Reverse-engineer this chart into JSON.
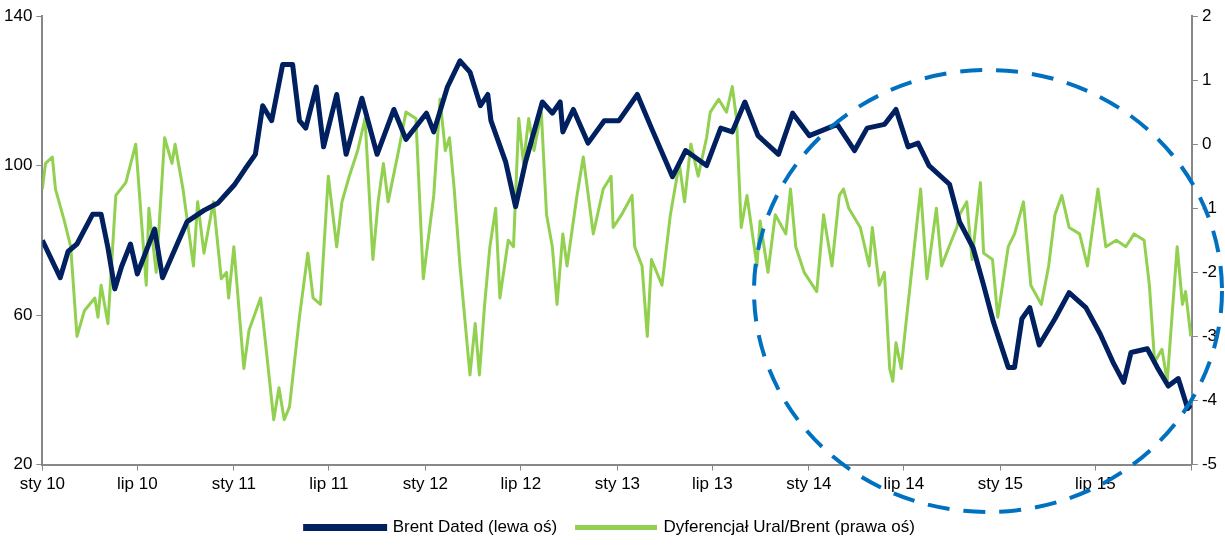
{
  "chart_data": {
    "type": "line",
    "legend": "bottom",
    "xlim": [
      "2010-01-01",
      "2016-01-01"
    ],
    "xticks": [
      {
        "value": "2010-01-01",
        "label": "sty 10"
      },
      {
        "value": "2010-07-01",
        "label": "lip 10"
      },
      {
        "value": "2011-01-01",
        "label": "sty 11"
      },
      {
        "value": "2011-07-01",
        "label": "lip 11"
      },
      {
        "value": "2012-01-01",
        "label": "sty 12"
      },
      {
        "value": "2012-07-01",
        "label": "lip 12"
      },
      {
        "value": "2013-01-01",
        "label": "sty 13"
      },
      {
        "value": "2013-07-01",
        "label": "lip 13"
      },
      {
        "value": "2014-01-01",
        "label": "sty 14"
      },
      {
        "value": "2014-07-01",
        "label": "lip 14"
      },
      {
        "value": "2015-01-01",
        "label": "sty 15"
      },
      {
        "value": "2015-07-01",
        "label": "lip 15"
      },
      {
        "value": "2016-01-01",
        "label": null
      }
    ],
    "ylim": [
      20,
      140
    ],
    "yticks": [
      20,
      60,
      100,
      140
    ],
    "y2lim": [
      -5,
      2
    ],
    "y2ticks": [
      -5,
      -4,
      -3,
      -2,
      -1,
      0,
      1,
      2
    ],
    "series": [
      {
        "name": "Brent Dated (lewa oś)",
        "color": "#002060",
        "x": [
          "2010-01-01",
          "2010-02-04",
          "2010-02-19",
          "2010-03-08",
          "2010-04-07",
          "2010-04-23",
          "2010-05-06",
          "2010-05-19",
          "2010-06-01",
          "2010-06-18",
          "2010-07-01",
          "2010-08-03",
          "2010-08-18",
          "2010-09-15",
          "2010-10-04",
          "2010-11-05",
          "2010-12-02",
          "2011-01-03",
          "2011-01-22",
          "2011-02-11",
          "2011-02-25",
          "2011-03-14",
          "2011-04-04",
          "2011-04-23",
          "2011-05-06",
          "2011-05-18",
          "2011-06-07",
          "2011-06-21",
          "2011-07-16",
          "2011-08-03",
          "2011-09-02",
          "2011-10-01",
          "2011-11-02",
          "2011-11-25",
          "2012-01-03",
          "2012-01-17",
          "2012-02-12",
          "2012-03-07",
          "2012-03-26",
          "2012-04-15",
          "2012-04-29",
          "2012-05-05",
          "2012-06-02",
          "2012-06-21",
          "2012-07-10",
          "2012-08-11",
          "2012-08-30",
          "2012-09-14",
          "2012-09-19",
          "2012-10-09",
          "2012-11-06",
          "2012-12-07",
          "2013-01-04",
          "2013-02-08",
          "2013-03-07",
          "2013-04-16",
          "2013-05-11",
          "2013-06-20",
          "2013-07-17",
          "2013-08-08",
          "2013-09-01",
          "2013-09-26",
          "2013-11-04",
          "2013-12-01",
          "2014-01-02",
          "2014-02-24",
          "2014-03-29",
          "2014-04-22",
          "2014-05-25",
          "2014-06-16",
          "2014-07-09",
          "2014-07-28",
          "2014-08-18",
          "2014-09-26",
          "2014-10-15",
          "2014-11-10",
          "2014-11-30",
          "2014-12-19",
          "2015-01-16",
          "2015-01-28",
          "2015-02-11",
          "2015-02-26",
          "2015-03-16",
          "2015-04-15",
          "2015-05-12",
          "2015-06-13",
          "2015-07-10",
          "2015-08-05",
          "2015-08-24",
          "2015-09-07",
          "2015-10-08",
          "2015-10-27",
          "2015-11-17",
          "2015-12-06",
          "2015-12-24",
          "2015-12-30"
        ],
        "values": [
          80,
          70,
          77,
          79,
          87,
          87,
          78,
          67,
          73,
          79,
          71,
          83,
          70,
          79,
          85,
          88,
          90,
          95,
          99,
          103,
          116,
          112,
          127,
          127,
          112,
          110,
          121,
          105,
          119,
          103,
          118,
          103,
          115,
          107,
          114,
          109,
          121,
          128,
          125,
          116,
          119,
          112,
          101,
          89,
          101,
          117,
          114,
          117,
          109,
          115,
          106,
          112,
          112,
          119,
          110,
          97,
          104,
          100,
          110,
          109,
          117,
          108,
          103,
          114,
          108,
          111,
          104,
          110,
          111,
          115,
          105,
          106,
          100,
          95,
          85,
          78,
          68,
          58,
          46,
          46,
          59,
          62,
          52,
          59,
          66,
          62,
          55,
          47,
          42,
          50,
          51,
          46,
          41,
          43,
          35,
          36
        ]
      },
      {
        "name": "Dyferencjał Ural/Brent (prawa oś)",
        "color": "#92d050",
        "axis": "y2",
        "x": [
          "2010-01-01",
          "2010-01-07",
          "2010-01-20",
          "2010-01-26",
          "2010-02-12",
          "2010-02-24",
          "2010-03-08",
          "2010-03-22",
          "2010-04-11",
          "2010-04-17",
          "2010-04-23",
          "2010-05-06",
          "2010-05-21",
          "2010-06-09",
          "2010-06-28",
          "2010-07-18",
          "2010-07-23",
          "2010-08-06",
          "2010-08-22",
          "2010-09-05",
          "2010-09-11",
          "2010-09-26",
          "2010-10-16",
          "2010-10-24",
          "2010-11-05",
          "2010-11-23",
          "2010-12-08",
          "2010-12-18",
          "2010-12-22",
          "2011-01-01",
          "2011-01-20",
          "2011-01-30",
          "2011-02-21",
          "2011-03-01",
          "2011-03-18",
          "2011-03-28",
          "2011-04-07",
          "2011-04-17",
          "2011-05-06",
          "2011-05-22",
          "2011-06-01",
          "2011-06-15",
          "2011-06-30",
          "2011-07-16",
          "2011-07-26",
          "2011-08-09",
          "2011-08-25",
          "2011-09-08",
          "2011-09-23",
          "2011-10-03",
          "2011-10-13",
          "2011-10-22",
          "2011-11-11",
          "2011-11-25",
          "2011-12-14",
          "2011-12-28",
          "2012-01-17",
          "2012-01-29",
          "2012-02-08",
          "2012-02-16",
          "2012-02-25",
          "2012-03-07",
          "2012-03-26",
          "2012-04-05",
          "2012-04-13",
          "2012-04-23",
          "2012-05-03",
          "2012-05-14",
          "2012-05-22",
          "2012-06-07",
          "2012-06-17",
          "2012-06-27",
          "2012-07-06",
          "2012-07-16",
          "2012-07-26",
          "2012-08-09",
          "2012-08-19",
          "2012-08-30",
          "2012-09-08",
          "2012-09-19",
          "2012-09-27",
          "2012-10-16",
          "2012-10-28",
          "2012-11-16",
          "2012-12-05",
          "2012-12-20",
          "2012-12-24",
          "2013-01-09",
          "2013-01-29",
          "2013-02-03",
          "2013-02-17",
          "2013-02-27",
          "2013-03-07",
          "2013-03-27",
          "2013-04-12",
          "2013-04-29",
          "2013-05-09",
          "2013-05-21",
          "2013-06-04",
          "2013-06-20",
          "2013-06-27",
          "2013-07-13",
          "2013-07-28",
          "2013-08-08",
          "2013-08-16",
          "2013-08-25",
          "2013-09-05",
          "2013-09-24",
          "2013-09-30",
          "2013-10-15",
          "2013-10-29",
          "2013-11-18",
          "2013-11-27",
          "2013-12-07",
          "2013-12-23",
          "2014-01-16",
          "2014-01-29",
          "2014-02-14",
          "2014-02-28",
          "2014-03-08",
          "2014-03-18",
          "2014-04-09",
          "2014-04-26",
          "2014-05-02",
          "2014-05-15",
          "2014-05-25",
          "2014-06-04",
          "2014-06-10",
          "2014-06-16",
          "2014-06-26",
          "2014-07-05",
          "2014-07-25",
          "2014-08-02",
          "2014-08-14",
          "2014-09-01",
          "2014-09-11",
          "2014-09-30",
          "2014-10-10",
          "2014-10-15",
          "2014-10-29",
          "2014-11-08",
          "2014-11-24",
          "2014-11-30",
          "2014-12-17",
          "2014-12-27",
          "2015-01-16",
          "2015-01-28",
          "2015-02-14",
          "2015-02-28",
          "2015-03-20",
          "2015-04-03",
          "2015-04-15",
          "2015-04-28",
          "2015-05-12",
          "2015-06-01",
          "2015-06-16",
          "2015-07-06",
          "2015-07-21",
          "2015-08-10",
          "2015-08-28",
          "2015-09-13",
          "2015-10-02",
          "2015-10-12",
          "2015-10-22",
          "2015-11-05",
          "2015-11-15",
          "2015-11-24",
          "2015-12-04",
          "2015-12-14",
          "2015-12-20",
          "2015-12-30"
        ],
        "values": [
          -0.7,
          -0.3,
          -0.2,
          -0.7,
          -1.2,
          -1.6,
          -3.0,
          -2.6,
          -2.4,
          -2.7,
          -2.2,
          -2.8,
          -0.8,
          -0.6,
          0.0,
          -2.2,
          -1.0,
          -2.0,
          0.1,
          -0.3,
          0.0,
          -0.7,
          -1.9,
          -0.9,
          -1.7,
          -0.9,
          -2.1,
          -2.0,
          -2.4,
          -1.6,
          -3.5,
          -2.9,
          -2.4,
          -3.0,
          -4.3,
          -3.8,
          -4.3,
          -4.1,
          -2.7,
          -1.7,
          -2.4,
          -2.5,
          -0.5,
          -1.6,
          -0.9,
          -0.5,
          -0.1,
          0.4,
          -1.8,
          -0.9,
          -0.3,
          -0.9,
          -0.1,
          0.5,
          0.4,
          -2.1,
          -0.8,
          0.7,
          -0.1,
          0.1,
          -0.7,
          -1.9,
          -3.6,
          -2.8,
          -3.6,
          -2.5,
          -1.6,
          -1.0,
          -2.4,
          -1.5,
          -1.6,
          0.4,
          -0.3,
          0.4,
          -0.1,
          0.5,
          -1.1,
          -1.6,
          -2.5,
          -1.4,
          -1.9,
          -0.8,
          -0.2,
          -1.4,
          -0.7,
          -0.5,
          -1.3,
          -1.1,
          -0.8,
          -1.6,
          -1.9,
          -3.0,
          -1.8,
          -2.2,
          -1.1,
          -0.3,
          -0.9,
          0.0,
          -0.5,
          0.1,
          0.5,
          0.7,
          0.5,
          0.9,
          0.4,
          -1.3,
          -0.8,
          -1.9,
          -1.2,
          -2.0,
          -1.1,
          -1.4,
          -0.7,
          -1.6,
          -2.0,
          -2.3,
          -1.1,
          -1.9,
          -0.8,
          -0.7,
          -1.0,
          -1.3,
          -1.9,
          -1.3,
          -2.2,
          -2.0,
          -3.5,
          -3.7,
          -3.1,
          -3.5,
          -2.8,
          -1.3,
          -0.7,
          -2.1,
          -1.0,
          -1.9,
          -1.5,
          -1.3,
          -1.1,
          -0.9,
          -1.8,
          -0.6,
          -1.7,
          -1.8,
          -2.7,
          -1.6,
          -1.4,
          -0.9,
          -2.2,
          -2.5,
          -1.9,
          -1.1,
          -0.8,
          -1.3,
          -1.4,
          -1.9,
          -0.7,
          -1.6,
          -1.5,
          -1.6,
          -1.4,
          -1.5,
          -2.2,
          -3.4,
          -3.2,
          -3.7,
          -2.7,
          -1.6,
          -2.5,
          -2.3,
          -3.0
        ]
      }
    ]
  }
}
